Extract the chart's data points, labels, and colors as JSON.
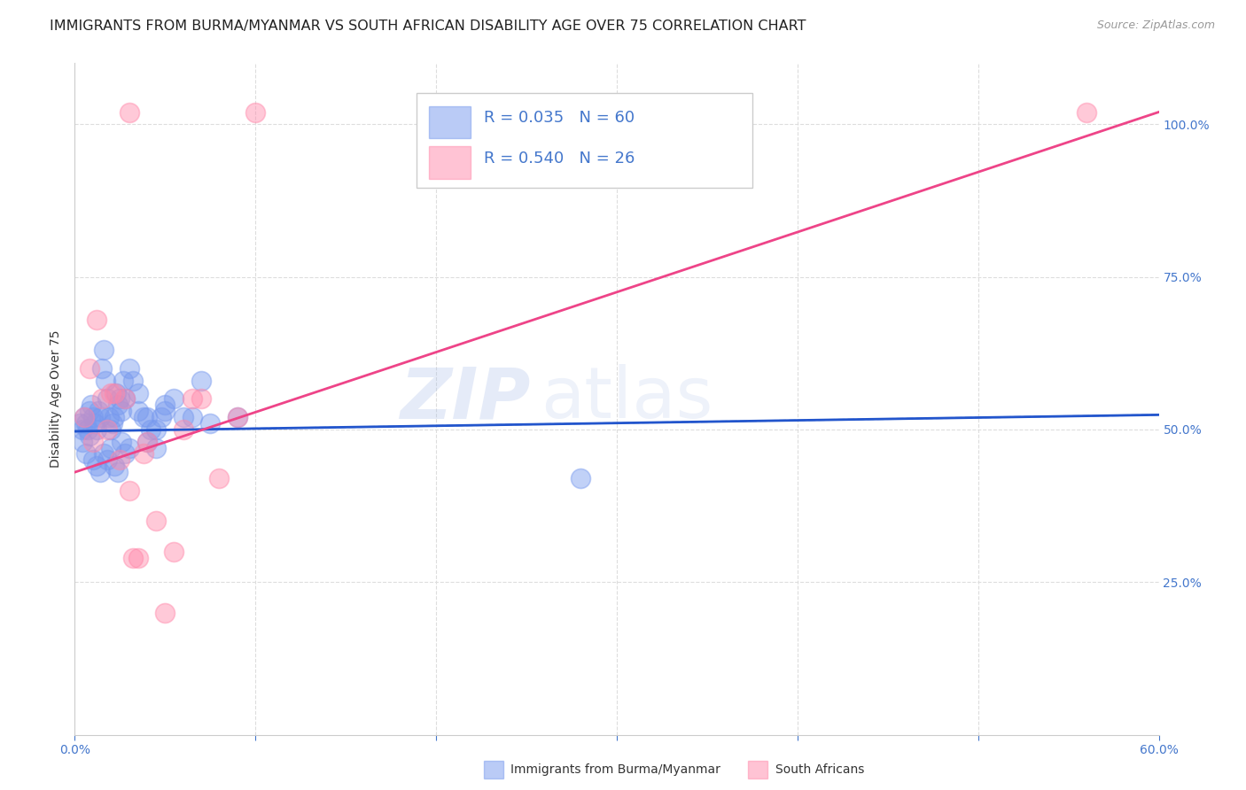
{
  "title": "IMMIGRANTS FROM BURMA/MYANMAR VS SOUTH AFRICAN DISABILITY AGE OVER 75 CORRELATION CHART",
  "source": "Source: ZipAtlas.com",
  "ylabel": "Disability Age Over 75",
  "xlim": [
    0.0,
    0.6
  ],
  "ylim": [
    0.0,
    1.1
  ],
  "ytick_positions": [
    0.25,
    0.5,
    0.75,
    1.0
  ],
  "ytick_labels": [
    "25.0%",
    "50.0%",
    "75.0%",
    "100.0%"
  ],
  "watermark": "ZIPatlas",
  "blue_R": 0.035,
  "blue_N": 60,
  "pink_R": 0.54,
  "pink_N": 26,
  "blue_color": "#7799ee",
  "pink_color": "#ff88aa",
  "legend_blue_label": "Immigrants from Burma/Myanmar",
  "legend_pink_label": "South Africans",
  "blue_scatter_x": [
    0.003,
    0.004,
    0.005,
    0.006,
    0.007,
    0.008,
    0.009,
    0.01,
    0.011,
    0.012,
    0.013,
    0.014,
    0.015,
    0.016,
    0.017,
    0.018,
    0.019,
    0.02,
    0.021,
    0.022,
    0.023,
    0.024,
    0.025,
    0.026,
    0.027,
    0.028,
    0.03,
    0.032,
    0.035,
    0.038,
    0.04,
    0.042,
    0.045,
    0.048,
    0.05,
    0.055,
    0.06,
    0.065,
    0.07,
    0.075,
    0.004,
    0.006,
    0.008,
    0.01,
    0.012,
    0.014,
    0.016,
    0.018,
    0.02,
    0.022,
    0.024,
    0.026,
    0.028,
    0.03,
    0.035,
    0.04,
    0.045,
    0.05,
    0.28,
    0.09
  ],
  "blue_scatter_y": [
    0.51,
    0.5,
    0.52,
    0.51,
    0.5,
    0.53,
    0.54,
    0.52,
    0.51,
    0.5,
    0.53,
    0.52,
    0.6,
    0.63,
    0.58,
    0.55,
    0.52,
    0.5,
    0.51,
    0.52,
    0.56,
    0.54,
    0.55,
    0.53,
    0.58,
    0.55,
    0.6,
    0.58,
    0.56,
    0.52,
    0.48,
    0.5,
    0.47,
    0.52,
    0.53,
    0.55,
    0.52,
    0.52,
    0.58,
    0.51,
    0.48,
    0.46,
    0.49,
    0.45,
    0.44,
    0.43,
    0.46,
    0.45,
    0.47,
    0.44,
    0.43,
    0.48,
    0.46,
    0.47,
    0.53,
    0.52,
    0.5,
    0.54,
    0.42,
    0.52
  ],
  "pink_scatter_x": [
    0.005,
    0.008,
    0.01,
    0.012,
    0.015,
    0.018,
    0.02,
    0.022,
    0.025,
    0.028,
    0.03,
    0.032,
    0.035,
    0.038,
    0.04,
    0.045,
    0.05,
    0.055,
    0.06,
    0.065,
    0.07,
    0.08,
    0.09,
    0.1,
    0.56,
    0.03
  ],
  "pink_scatter_y": [
    0.52,
    0.6,
    0.48,
    0.68,
    0.55,
    0.5,
    0.56,
    0.56,
    0.45,
    0.55,
    0.4,
    0.29,
    0.29,
    0.46,
    0.48,
    0.35,
    0.2,
    0.3,
    0.5,
    0.55,
    0.55,
    0.42,
    0.52,
    1.02,
    1.02,
    1.02
  ],
  "blue_trendline_x": [
    0.0,
    0.6
  ],
  "blue_trendline_y": [
    0.497,
    0.524
  ],
  "pink_trendline_x": [
    0.0,
    0.6
  ],
  "pink_trendline_y": [
    0.43,
    1.02
  ],
  "grid_color": "#dddddd",
  "background_color": "#ffffff",
  "title_color": "#222222",
  "axis_color": "#4477cc",
  "title_fontsize": 11.5,
  "axis_label_fontsize": 10,
  "tick_fontsize": 10,
  "legend_fontsize": 13,
  "source_fontsize": 9,
  "blue_trend_color": "#2255cc",
  "pink_trend_color": "#ee4488"
}
